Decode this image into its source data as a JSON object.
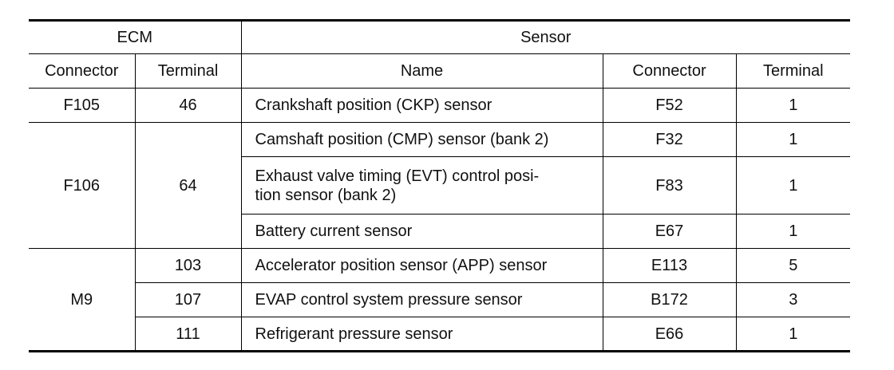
{
  "header": {
    "ecm_label": "ECM",
    "sensor_label": "Sensor",
    "ecm_connector": "Connector",
    "ecm_terminal": "Terminal",
    "sensor_name": "Name",
    "sensor_connector": "Connector",
    "sensor_terminal": "Terminal"
  },
  "groups": [
    {
      "ecm_connector": "F105",
      "rows": [
        {
          "ecm_terminal": "46",
          "name": "Crankshaft position (CKP) sensor",
          "connector": "F52",
          "terminal": "1"
        }
      ]
    },
    {
      "ecm_connector": "F106",
      "ecm_terminal": "64",
      "rows": [
        {
          "name": "Camshaft position (CMP) sensor (bank 2)",
          "connector": "F32",
          "terminal": "1"
        },
        {
          "name_line1": "Exhaust valve timing (EVT) control posi-",
          "name_line2": "tion sensor (bank 2)",
          "connector": "F83",
          "terminal": "1"
        },
        {
          "name": "Battery current sensor",
          "connector": "E67",
          "terminal": "1"
        }
      ]
    },
    {
      "ecm_connector": "M9",
      "rows": [
        {
          "ecm_terminal": "103",
          "name": "Accelerator position sensor (APP) sensor",
          "connector": "E113",
          "terminal": "5"
        },
        {
          "ecm_terminal": "107",
          "name": "EVAP control system pressure sensor",
          "connector": "B172",
          "terminal": "3"
        },
        {
          "ecm_terminal": "111",
          "name": "Refrigerant pressure sensor",
          "connector": "E66",
          "terminal": "1"
        }
      ]
    }
  ]
}
